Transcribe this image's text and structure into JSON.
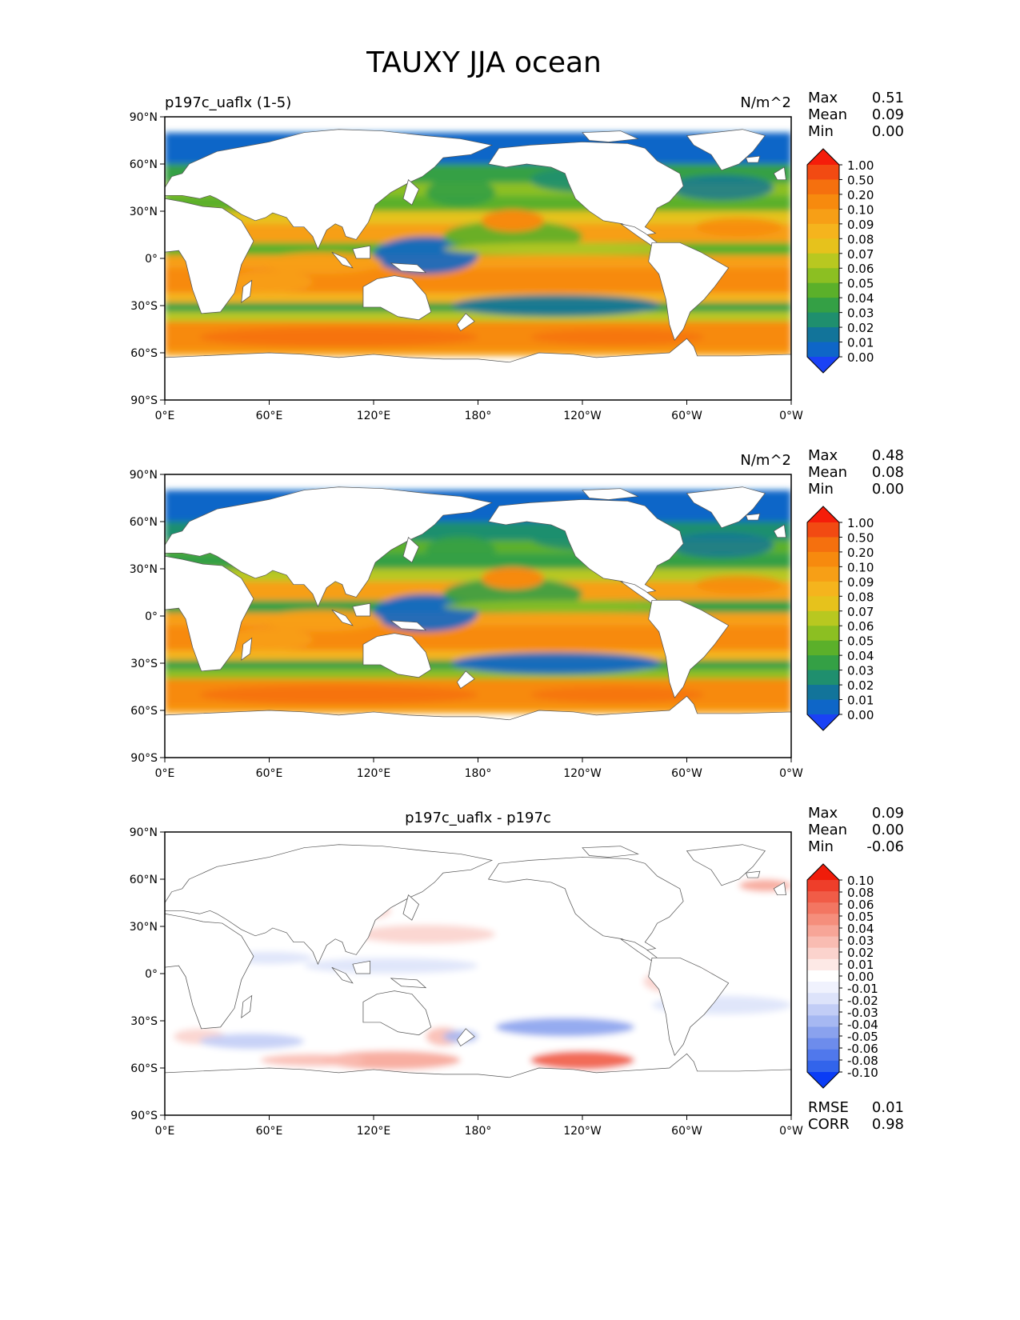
{
  "title": "TAUXY JJA ocean",
  "lat_ticks": [
    "90°N",
    "60°N",
    "30°N",
    "0°",
    "30°S",
    "60°S",
    "90°S"
  ],
  "lon_ticks": [
    "0°E",
    "60°E",
    "120°E",
    "180°",
    "120°W",
    "60°W",
    "0°W"
  ],
  "stat_labels": {
    "max": "Max",
    "mean": "Mean",
    "min": "Min",
    "rmse": "RMSE",
    "corr": "CORR"
  },
  "seq_colors": [
    "#1a42f5",
    "#0e66c8",
    "#12749a",
    "#1f8f6e",
    "#34a045",
    "#5bb02a",
    "#8cbf22",
    "#b8c820",
    "#e6c21c",
    "#f5b41d",
    "#f79f16",
    "#f78a0e",
    "#f5700e",
    "#f24a12",
    "#f51d0a"
  ],
  "div_colors": [
    "#0a3cf5",
    "#3264eb",
    "#5078ec",
    "#6d8cec",
    "#8aa2ee",
    "#a6b8f2",
    "#c2cdf6",
    "#dde3fa",
    "#f0f2fd",
    "#ffffff",
    "#fde9e6",
    "#fbd3cd",
    "#f9bcb2",
    "#f7a597",
    "#f58e7c",
    "#f37662",
    "#f15c47",
    "#ee3e2a",
    "#f01c0a"
  ],
  "panels": [
    {
      "left_title": "p197c_uaflx (1-5)",
      "center_title": "",
      "units": "N/m^2",
      "stats": {
        "max": "0.51",
        "mean": "0.09",
        "min": "0.00"
      },
      "colorbar_labels": [
        "1.00",
        "0.50",
        "0.20",
        "0.10",
        "0.09",
        "0.08",
        "0.07",
        "0.06",
        "0.05",
        "0.04",
        "0.03",
        "0.02",
        "0.01",
        "0.00"
      ]
    },
    {
      "left_title": "",
      "center_title": "",
      "units": "N/m^2",
      "stats": {
        "max": "0.48",
        "mean": "0.08",
        "min": "0.00"
      },
      "colorbar_labels": [
        "1.00",
        "0.50",
        "0.20",
        "0.10",
        "0.09",
        "0.08",
        "0.07",
        "0.06",
        "0.05",
        "0.04",
        "0.03",
        "0.02",
        "0.01",
        "0.00"
      ]
    },
    {
      "left_title": "",
      "center_title": "p197c_uaflx - p197c",
      "units": "",
      "stats": {
        "max": "0.09",
        "mean": "0.00",
        "min": "-0.06"
      },
      "colorbar_labels": [
        "0.10",
        "0.08",
        "0.06",
        "0.05",
        "0.04",
        "0.03",
        "0.02",
        "0.01",
        "0.00",
        "-0.01",
        "-0.02",
        "-0.03",
        "-0.04",
        "-0.05",
        "-0.06",
        "-0.08",
        "-0.10"
      ],
      "rmse": "0.01",
      "corr": "0.98"
    }
  ]
}
